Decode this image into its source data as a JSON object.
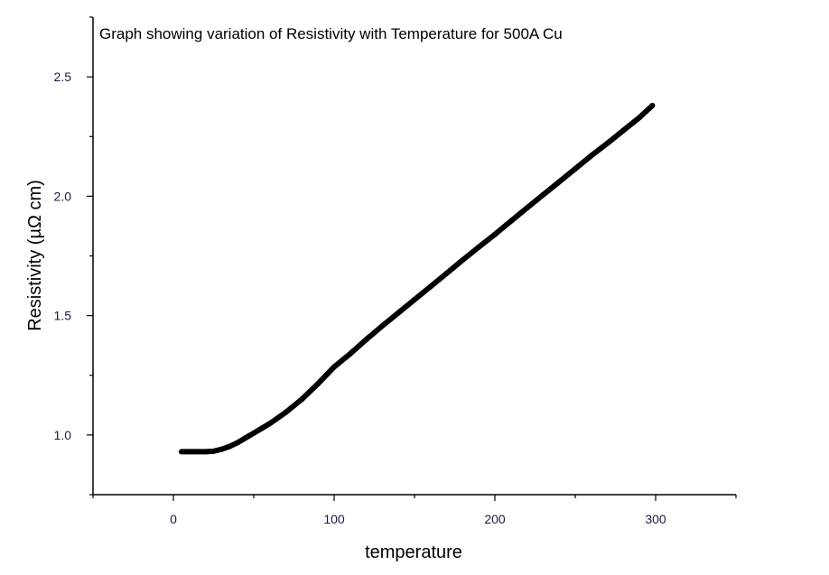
{
  "chart_data": {
    "type": "line",
    "title": "Graph showing variation of Resistivity with Temperature for 500A Cu",
    "xlabel": "temperature",
    "ylabel": "Resistivity (µΩ cm)",
    "xlim": [
      -50,
      350
    ],
    "ylim": [
      0.75,
      2.75
    ],
    "xticks": [
      0,
      100,
      200,
      300
    ],
    "xtick_labels": [
      "0",
      "100",
      "200",
      "300"
    ],
    "yticks": [
      1.0,
      1.5,
      2.0,
      2.5
    ],
    "ytick_labels": [
      "1.0",
      "1.5",
      "2.0",
      "2.5"
    ],
    "grid": false,
    "series": [
      {
        "name": "500A Cu",
        "color": "#000000",
        "x": [
          5,
          10,
          15,
          20,
          25,
          30,
          35,
          40,
          45,
          50,
          55,
          60,
          70,
          80,
          90,
          100,
          110,
          120,
          130,
          140,
          150,
          160,
          170,
          180,
          190,
          200,
          210,
          220,
          230,
          240,
          250,
          260,
          270,
          280,
          290,
          298
        ],
        "y": [
          0.93,
          0.93,
          0.93,
          0.93,
          0.932,
          0.94,
          0.952,
          0.968,
          0.988,
          1.008,
          1.028,
          1.048,
          1.095,
          1.15,
          1.215,
          1.285,
          1.34,
          1.4,
          1.457,
          1.512,
          1.567,
          1.622,
          1.677,
          1.733,
          1.787,
          1.84,
          1.896,
          1.951,
          2.006,
          2.06,
          2.115,
          2.17,
          2.222,
          2.276,
          2.33,
          2.38
        ]
      }
    ]
  }
}
